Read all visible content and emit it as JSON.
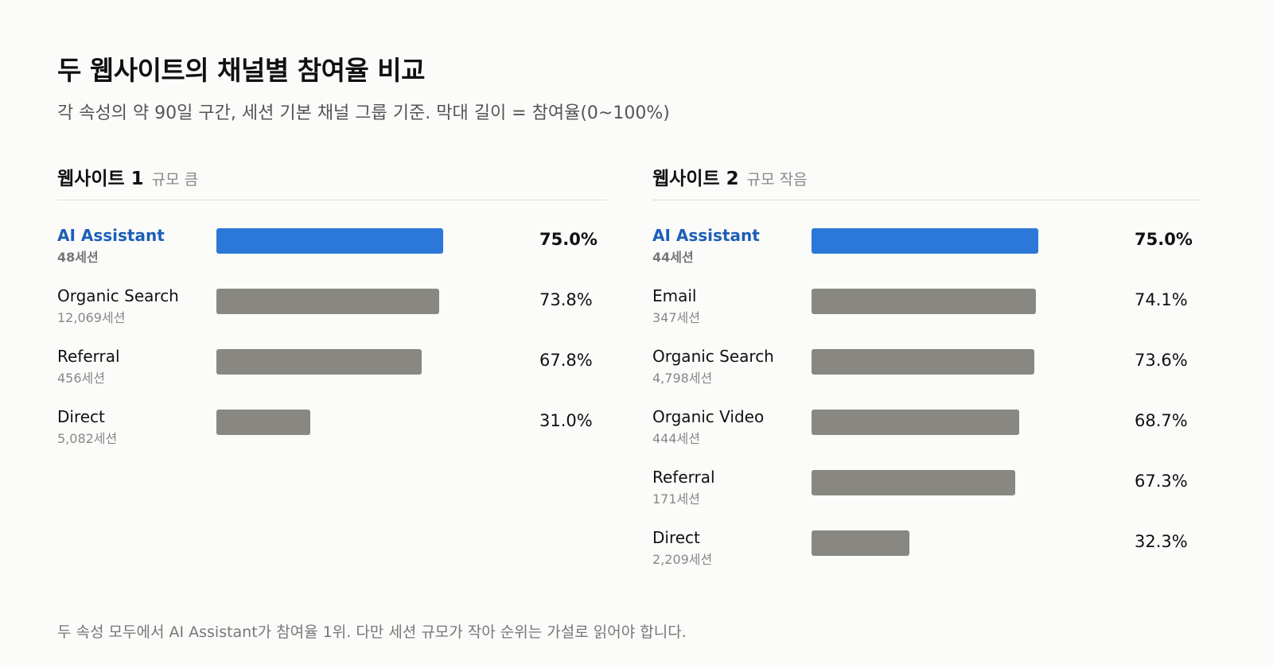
{
  "title": "두 웹사이트의 채널별 참여율 비교",
  "subtitle": "각 속성의 약 90일 구간, 세션 기본 채널 그룹 기준. 막대 길이 = 참여율(0~100%)",
  "footnote": "두 속성 모두에서 AI Assistant가 참여율 1위. 다만 세션 규모가 작아 순위는 가설로 읽어야 합니다.",
  "colors": {
    "highlight_bar": "#2c78d8",
    "highlight_text": "#1d5fb7",
    "default_bar": "#888782"
  },
  "chart_data": [
    {
      "type": "bar",
      "orientation": "horizontal",
      "title": "웹사이트 1",
      "subtitle": "규모 큼",
      "xlim": [
        0,
        100
      ],
      "categories": [
        "AI Assistant",
        "Organic Search",
        "Referral",
        "Direct"
      ],
      "sessions": [
        "48세션",
        "12,069세션",
        "456세션",
        "5,082세션"
      ],
      "values": [
        75.0,
        73.8,
        67.8,
        31.0
      ],
      "value_labels": [
        "75.0%",
        "73.8%",
        "67.8%",
        "31.0%"
      ],
      "highlight": "AI Assistant"
    },
    {
      "type": "bar",
      "orientation": "horizontal",
      "title": "웹사이트 2",
      "subtitle": "규모 작음",
      "xlim": [
        0,
        100
      ],
      "categories": [
        "AI Assistant",
        "Email",
        "Organic Search",
        "Organic Video",
        "Referral",
        "Direct"
      ],
      "sessions": [
        "44세션",
        "347세션",
        "4,798세션",
        "444세션",
        "171세션",
        "2,209세션"
      ],
      "values": [
        75.0,
        74.1,
        73.6,
        68.7,
        67.3,
        32.3
      ],
      "value_labels": [
        "75.0%",
        "74.1%",
        "73.6%",
        "68.7%",
        "67.3%",
        "32.3%"
      ],
      "highlight": "AI Assistant"
    }
  ]
}
